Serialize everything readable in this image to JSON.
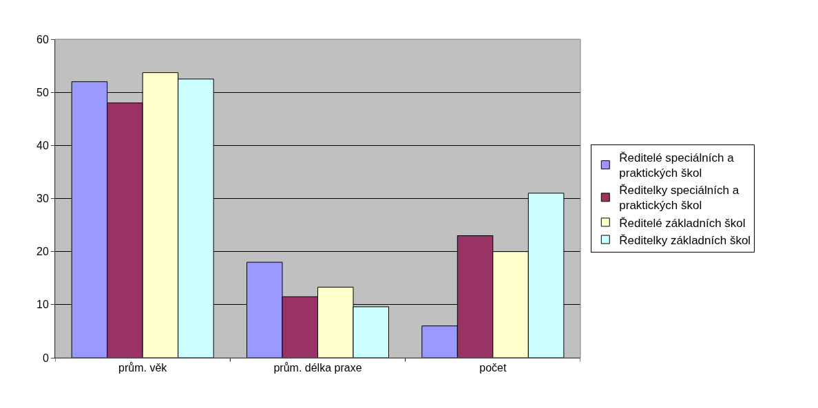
{
  "chart_data": {
    "type": "bar",
    "categories": [
      "prům. věk",
      "prům. délka praxe",
      "počet"
    ],
    "series": [
      {
        "name": "Ředitelé speciálních a praktických škol",
        "color": "#9999ff",
        "values": [
          52,
          18,
          6
        ]
      },
      {
        "name": "Ředitelky speciálních a praktických škol",
        "color": "#993366",
        "values": [
          48,
          11.5,
          23
        ]
      },
      {
        "name": "Ředitelé základních škol",
        "color": "#ffffcc",
        "values": [
          53.7,
          13.3,
          20
        ]
      },
      {
        "name": "Ředitelky základních škol",
        "color": "#ccffff",
        "values": [
          52.5,
          9.6,
          31
        ]
      }
    ],
    "ylim": [
      0,
      60
    ],
    "yticks": [
      0,
      10,
      20,
      30,
      40,
      50,
      60
    ],
    "grid": "y",
    "legend": "right"
  }
}
